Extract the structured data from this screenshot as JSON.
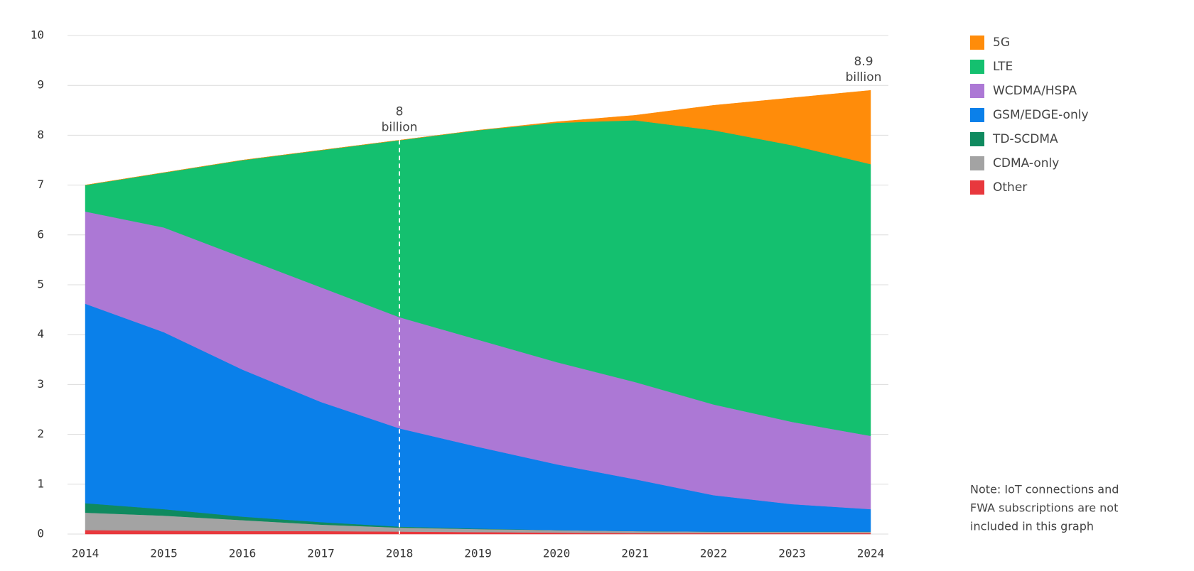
{
  "chart_data": {
    "type": "stacked-area",
    "categories": [
      "2014",
      "2015",
      "2016",
      "2017",
      "2018",
      "2019",
      "2020",
      "2021",
      "2022",
      "2023",
      "2024"
    ],
    "series": [
      {
        "name": "Other",
        "color": "#e8383d",
        "values": [
          0.08,
          0.07,
          0.06,
          0.06,
          0.05,
          0.04,
          0.03,
          0.02,
          0.02,
          0.02,
          0.02
        ]
      },
      {
        "name": "CDMA-only",
        "color": "#a3a3a3",
        "values": [
          0.35,
          0.3,
          0.22,
          0.13,
          0.08,
          0.06,
          0.05,
          0.04,
          0.03,
          0.03,
          0.03
        ]
      },
      {
        "name": "TD-SCDMA",
        "color": "#0f8a5f",
        "values": [
          0.19,
          0.13,
          0.07,
          0.05,
          0.02,
          0.01,
          0,
          0,
          0,
          0,
          0
        ]
      },
      {
        "name": "GSM/EDGE-only",
        "color": "#0a80ea",
        "values": [
          4.0,
          3.55,
          2.95,
          2.41,
          1.97,
          1.64,
          1.32,
          1.04,
          0.73,
          0.55,
          0.45
        ]
      },
      {
        "name": "WCDMA/HSPA",
        "color": "#ac78d5",
        "values": [
          1.85,
          2.1,
          2.25,
          2.3,
          2.23,
          2.15,
          2.05,
          1.95,
          1.82,
          1.65,
          1.47
        ]
      },
      {
        "name": "LTE",
        "color": "#14c06f",
        "values": [
          0.53,
          1.1,
          1.95,
          2.75,
          3.55,
          4.2,
          4.8,
          5.25,
          5.5,
          5.55,
          5.45
        ]
      },
      {
        "name": "5G",
        "color": "#ff8c0a",
        "values": [
          0,
          0,
          0,
          0,
          0,
          0,
          0.02,
          0.1,
          0.5,
          0.95,
          1.48
        ]
      }
    ],
    "ylim": [
      0,
      10
    ],
    "yticks": [
      0,
      1,
      2,
      3,
      4,
      5,
      6,
      7,
      8,
      9,
      10
    ],
    "grid": true,
    "legend": "right",
    "annotations": [
      {
        "category": "2018",
        "lines": [
          "8",
          "billion"
        ],
        "dashed": true
      },
      {
        "category": "2024",
        "lines": [
          "8.9",
          "billion"
        ],
        "dashed": false
      }
    ],
    "note": [
      "Note: IoT connections and",
      "FWA subscriptions are not",
      "included in this graph"
    ]
  }
}
